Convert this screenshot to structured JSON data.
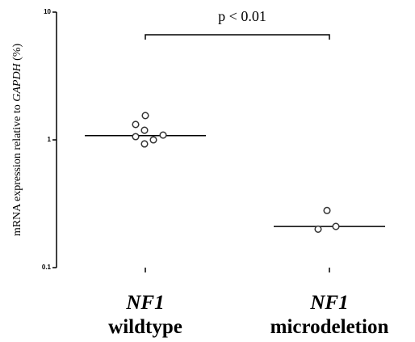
{
  "chart_data": {
    "type": "dotplot",
    "y_label": [
      "mRNA expression relative to ",
      "GAPDH",
      " (%)"
    ],
    "categories": [
      [
        "NF1",
        "wildtype"
      ],
      [
        "NF1",
        "microdeletion"
      ]
    ],
    "values": [
      [
        1.55,
        1.32,
        1.19,
        1.06,
        1.09,
        1.0,
        0.93
      ],
      [
        0.28,
        0.2,
        0.21
      ]
    ],
    "medians": [
      1.08,
      0.21
    ],
    "annotation": "p < 0.01",
    "log_y": true,
    "ylim": [
      0.1,
      10
    ],
    "yticks": [
      0.1,
      1,
      10
    ]
  }
}
